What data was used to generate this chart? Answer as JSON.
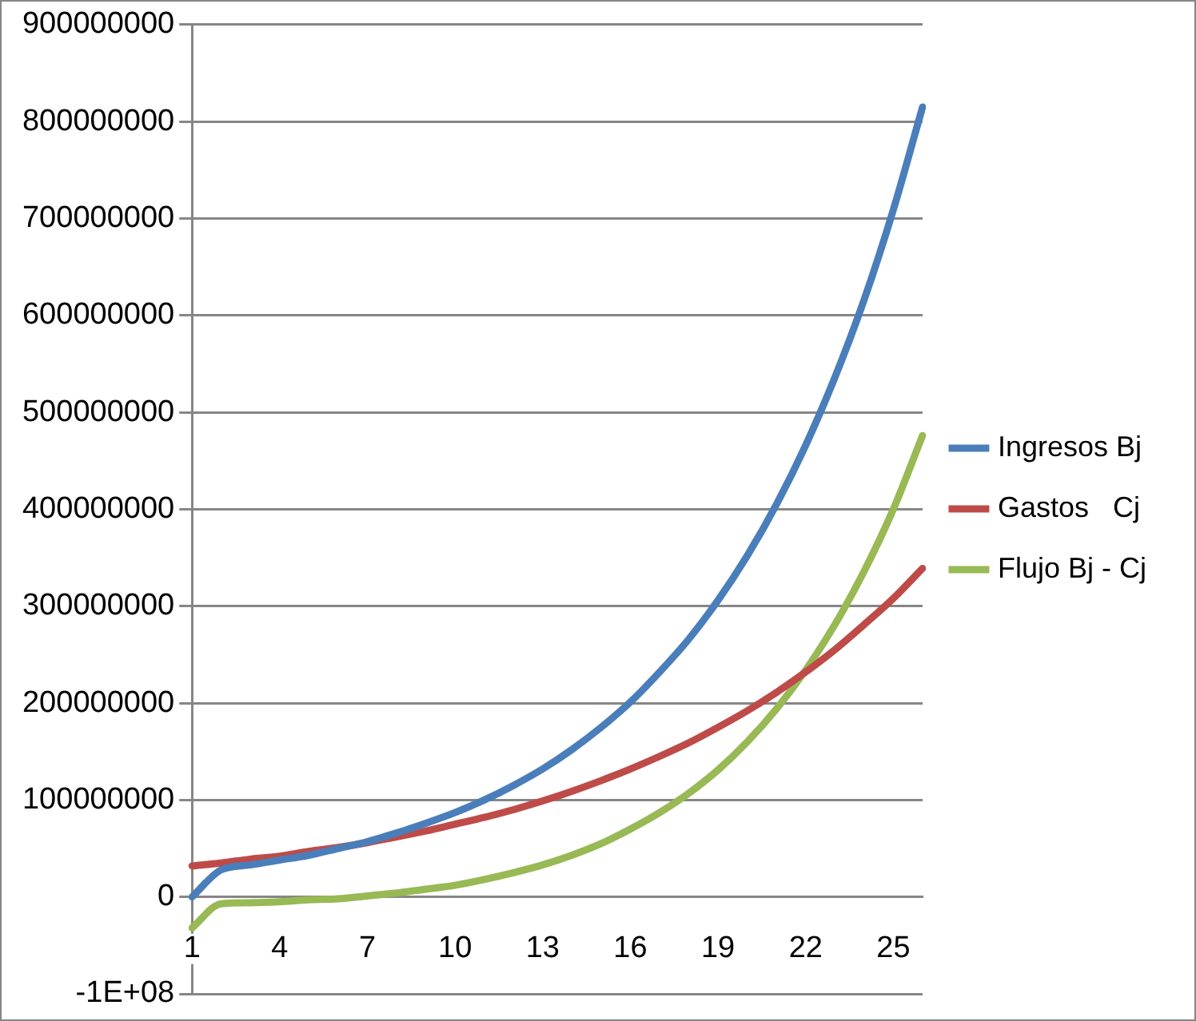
{
  "chart_data": {
    "type": "line",
    "categories": [
      "1",
      null,
      null,
      "4",
      null,
      null,
      "7",
      null,
      null,
      "10",
      null,
      null,
      "13",
      null,
      null,
      "16",
      null,
      null,
      "19",
      null,
      null,
      "22",
      null,
      null,
      "25",
      null
    ],
    "series": [
      {
        "name": "Ingresos Bj",
        "color": "#4a7ebb",
        "values": [
          0,
          28000000,
          33000000,
          38000000,
          43000000,
          50000000,
          57000000,
          66000000,
          76000000,
          87000000,
          100000000,
          115000000,
          132000000,
          152000000,
          175000000,
          201000000,
          232000000,
          266000000,
          306000000,
          352000000,
          405000000,
          466000000,
          536000000,
          616000000,
          709000000,
          815000000
        ]
      },
      {
        "name": "Gastos   Cj",
        "color": "#be4b48",
        "values": [
          32000000,
          35000000,
          39000000,
          42000000,
          47000000,
          51000000,
          56000000,
          62000000,
          68000000,
          75000000,
          82000000,
          90000000,
          99000000,
          109000000,
          120000000,
          132000000,
          145000000,
          159000000,
          175000000,
          192000000,
          211000000,
          232000000,
          255000000,
          281000000,
          308000000,
          339000000
        ]
      },
      {
        "name": "Flujo Bj - Cj",
        "color": "#98b954",
        "values": [
          -32000000,
          -7000000,
          -6000000,
          -5000000,
          -3000000,
          -2000000,
          1000000,
          4000000,
          8000000,
          12000000,
          18000000,
          25000000,
          33000000,
          43000000,
          55000000,
          70000000,
          87000000,
          107000000,
          131000000,
          160000000,
          194000000,
          234000000,
          281000000,
          336000000,
          400000000,
          476000000
        ]
      }
    ],
    "ylim": [
      -100000000,
      900000000
    ],
    "yticks": [
      {
        "value": -100000000,
        "label": "-1E+08"
      },
      0,
      100000000,
      200000000,
      300000000,
      400000000,
      500000000,
      600000000,
      700000000,
      800000000,
      900000000
    ],
    "grid": "y",
    "legend": "right",
    "marker": "none",
    "line_style": "solid"
  }
}
